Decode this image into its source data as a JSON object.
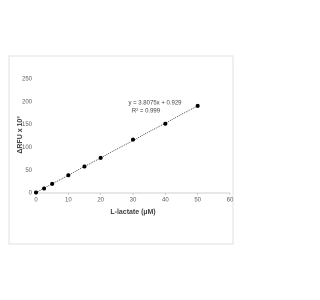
{
  "chart_data": {
    "type": "scatter",
    "x_label": "L-lactate (µM)",
    "y_label": "ΔRFU x 10³",
    "annotations": [
      "y = 3.8075x + 0.929",
      "R² = 0.999"
    ],
    "x": [
      0,
      2.5,
      5,
      10,
      15,
      20,
      30,
      40,
      50
    ],
    "values": [
      1,
      10,
      20,
      39,
      58,
      77,
      117,
      152,
      191
    ],
    "color": "#000000",
    "trendline": {
      "slope": 3.8075,
      "intercept": 0.929,
      "color": "#000000"
    },
    "xlim": [
      0,
      60
    ],
    "xticks": [
      0,
      10,
      20,
      30,
      40,
      50,
      60
    ],
    "ylim": [
      0,
      250
    ],
    "yticks": [
      0,
      50,
      100,
      150,
      200,
      250
    ],
    "grid": false
  }
}
